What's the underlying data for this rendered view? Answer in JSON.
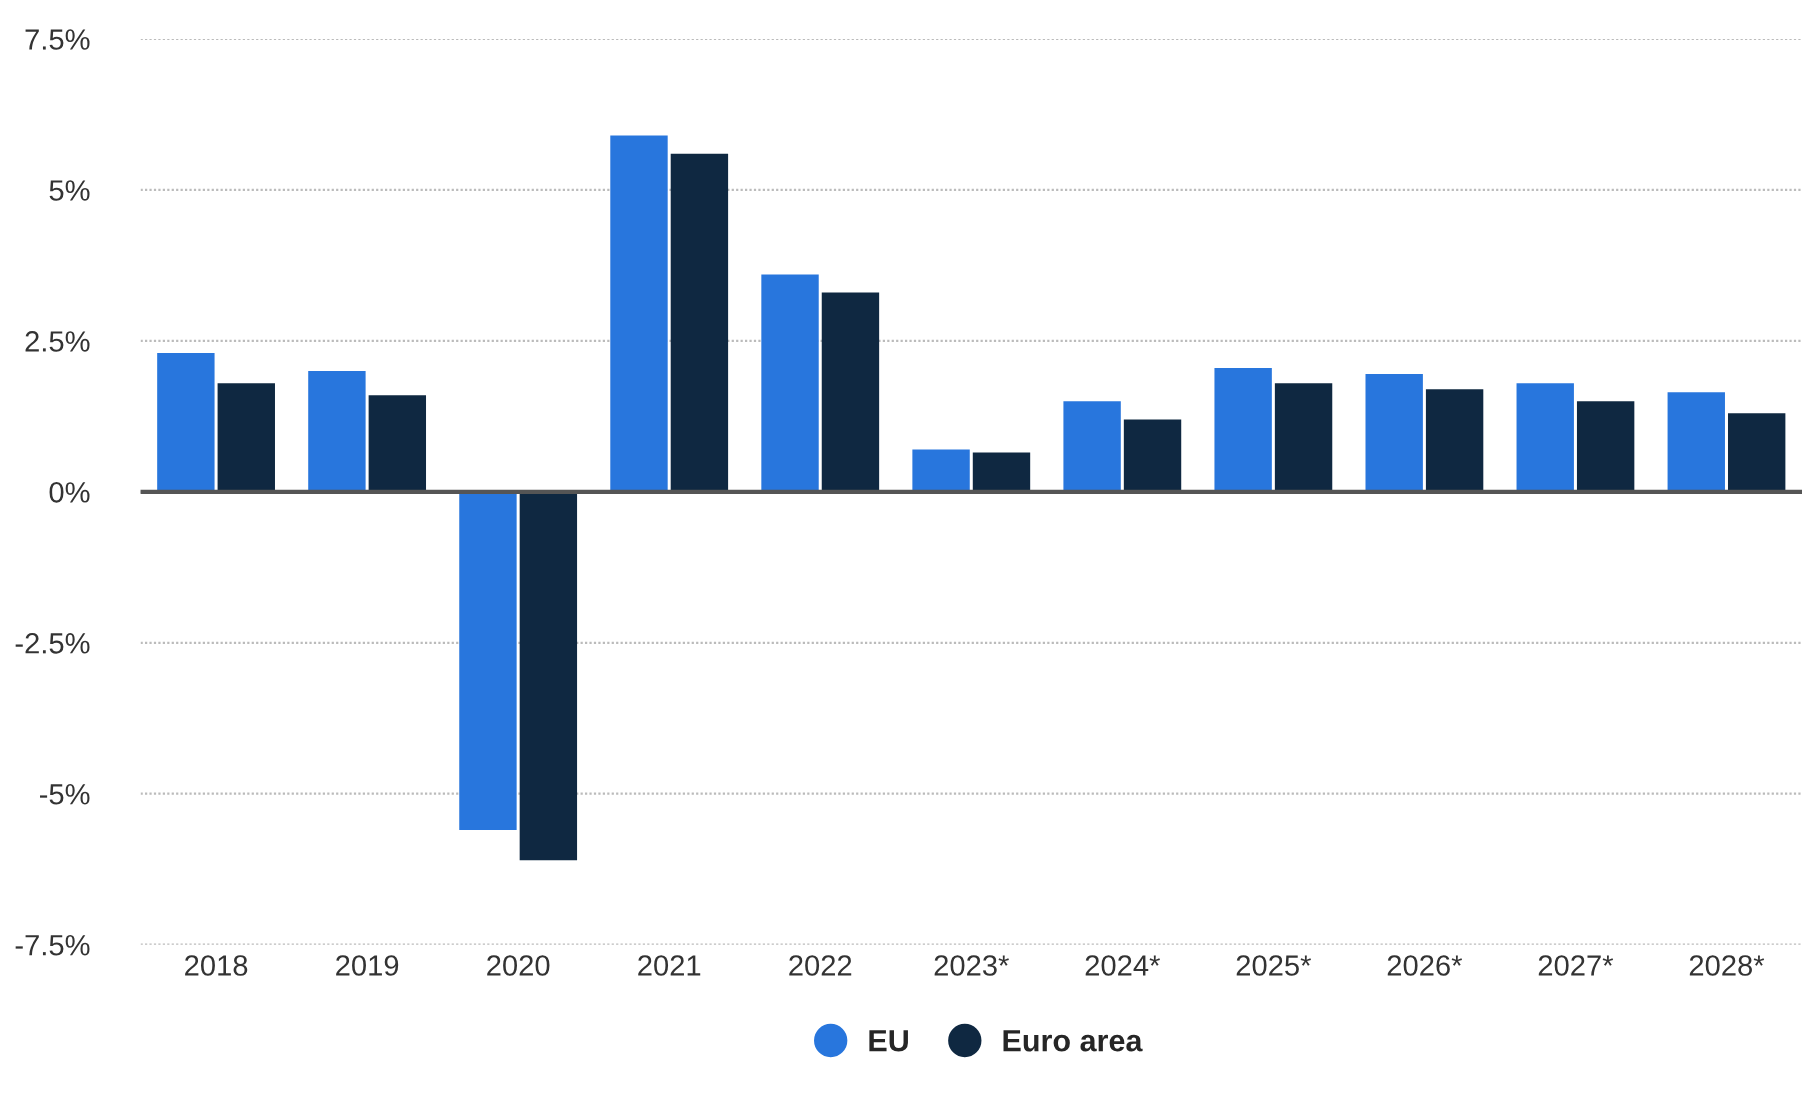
{
  "chart_data": {
    "type": "bar",
    "categories": [
      "2018",
      "2019",
      "2020",
      "2021",
      "2022",
      "2023*",
      "2024*",
      "2025*",
      "2026*",
      "2027*",
      "2028*"
    ],
    "series": [
      {
        "name": "EU",
        "color": "#2876dd",
        "values": [
          2.3,
          2.0,
          -5.6,
          5.9,
          3.6,
          0.7,
          1.5,
          2.05,
          1.95,
          1.8,
          1.65
        ]
      },
      {
        "name": "Euro area",
        "color": "#0f2841",
        "values": [
          1.8,
          1.6,
          -6.1,
          5.6,
          3.3,
          0.65,
          1.2,
          1.8,
          1.7,
          1.5,
          1.3
        ]
      }
    ],
    "ylim": [
      -7.5,
      7.5
    ],
    "yticks": [
      {
        "value": -7.5,
        "label": "-7.5%"
      },
      {
        "value": -5,
        "label": "-5%"
      },
      {
        "value": -2.5,
        "label": "-2.5%"
      },
      {
        "value": 0,
        "label": "0%"
      },
      {
        "value": 2.5,
        "label": "2.5%"
      },
      {
        "value": 5,
        "label": "5%"
      },
      {
        "value": 7.5,
        "label": "7.5%"
      }
    ],
    "grid": "y",
    "legend": "bottom"
  }
}
